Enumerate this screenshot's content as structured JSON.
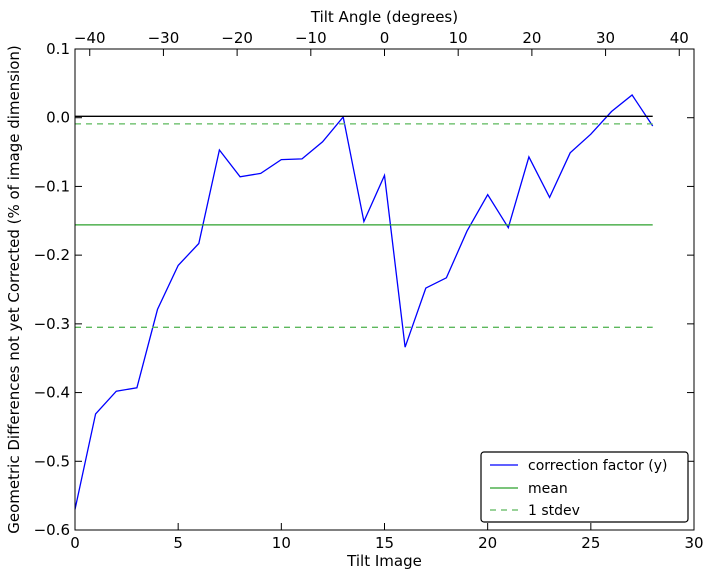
{
  "chart_data": {
    "type": "line",
    "xlabel": "Tilt Image",
    "ylabel": "Geometric Differences not yet Corrected (% of image dimension)",
    "top_xlabel": "Tilt Angle (degrees)",
    "xlim": [
      0,
      30
    ],
    "ylim": [
      -0.6,
      0.1
    ],
    "top_xlim": [
      -42,
      42
    ],
    "x_ticks": [
      0,
      5,
      10,
      15,
      20,
      25,
      30
    ],
    "x_tick_labels": [
      "0",
      "5",
      "10",
      "15",
      "20",
      "25",
      "30"
    ],
    "y_ticks": [
      -0.6,
      -0.5,
      -0.4,
      -0.3,
      -0.2,
      -0.1,
      0.0,
      0.1
    ],
    "y_tick_labels": [
      "−0.6",
      "−0.5",
      "−0.4",
      "−0.3",
      "−0.2",
      "−0.1",
      "0.0",
      "0.1"
    ],
    "top_ticks": [
      -40,
      -30,
      -20,
      -10,
      0,
      10,
      20,
      30,
      40
    ],
    "top_tick_labels": [
      "−40",
      "−30",
      "−20",
      "−10",
      "0",
      "10",
      "20",
      "30",
      "40"
    ],
    "grid": false,
    "legend_position": "lower-right",
    "series": [
      {
        "name": "correction factor (y)",
        "color": "#0000ff",
        "style": "solid",
        "x": [
          0,
          1,
          2,
          3,
          4,
          5,
          6,
          7,
          8,
          9,
          10,
          11,
          12,
          13,
          14,
          15,
          16,
          17,
          18,
          19,
          20,
          21,
          22,
          23,
          24,
          25,
          26,
          27,
          28
        ],
        "y": [
          -0.57,
          -0.431,
          -0.398,
          -0.393,
          -0.279,
          -0.215,
          -0.183,
          -0.047,
          -0.086,
          -0.081,
          -0.061,
          -0.06,
          -0.035,
          0.001,
          -0.151,
          -0.084,
          -0.334,
          -0.248,
          -0.233,
          -0.165,
          -0.112,
          -0.16,
          -0.057,
          -0.116,
          -0.051,
          -0.024,
          0.009,
          0.033,
          -0.012
        ]
      },
      {
        "name": "mean",
        "color": "#2ca02c",
        "style": "solid",
        "x": [
          0,
          28
        ],
        "y": [
          -0.156,
          -0.156
        ]
      },
      {
        "name": "1 stdev",
        "color": "#5cb85c",
        "style": "dashed",
        "x": [
          0,
          28
        ],
        "y": [
          -0.009,
          -0.009
        ]
      },
      {
        "name": "",
        "color": "#5cb85c",
        "style": "dashed",
        "x": [
          0,
          28
        ],
        "y": [
          -0.305,
          -0.305
        ]
      },
      {
        "name": "",
        "color": "#000000",
        "style": "solid",
        "x": [
          0,
          28
        ],
        "y": [
          0.002,
          0.002
        ]
      }
    ]
  }
}
